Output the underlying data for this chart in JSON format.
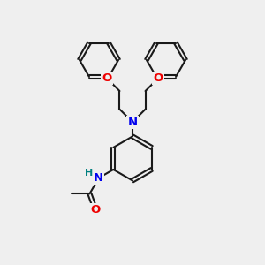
{
  "bg_color": "#efefef",
  "bond_color": "#1a1a1a",
  "N_color": "#0000ee",
  "O_color": "#ee0000",
  "H_color": "#008080",
  "line_width": 1.5,
  "figsize": [
    3.0,
    3.0
  ],
  "dpi": 100,
  "xlim": [
    0,
    10
  ],
  "ylim": [
    0,
    10
  ]
}
